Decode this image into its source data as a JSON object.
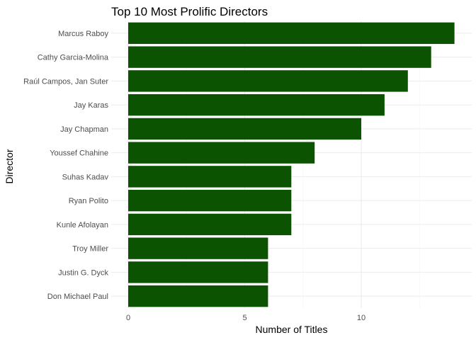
{
  "chart_data": {
    "type": "bar",
    "orientation": "horizontal",
    "title": "Top 10 Most Prolific Directors",
    "xlabel": "Number of Titles",
    "ylabel": "Director",
    "categories": [
      "Marcus Raboy",
      "Cathy Garcia-Molina",
      "Raúl Campos, Jan Suter",
      "Jay Karas",
      "Jay Chapman",
      "Youssef Chahine",
      "Suhas Kadav",
      "Ryan Polito",
      "Kunle Afolayan",
      "Troy Miller",
      "Justin G. Dyck",
      "Don Michael Paul"
    ],
    "values": [
      14,
      13,
      12,
      11,
      10,
      8,
      7,
      7,
      7,
      6,
      6,
      6
    ],
    "xlim": [
      0,
      14
    ],
    "xticks": [
      0,
      5,
      10
    ],
    "bar_color": "#0b5300",
    "grid": true,
    "legend": "none"
  }
}
